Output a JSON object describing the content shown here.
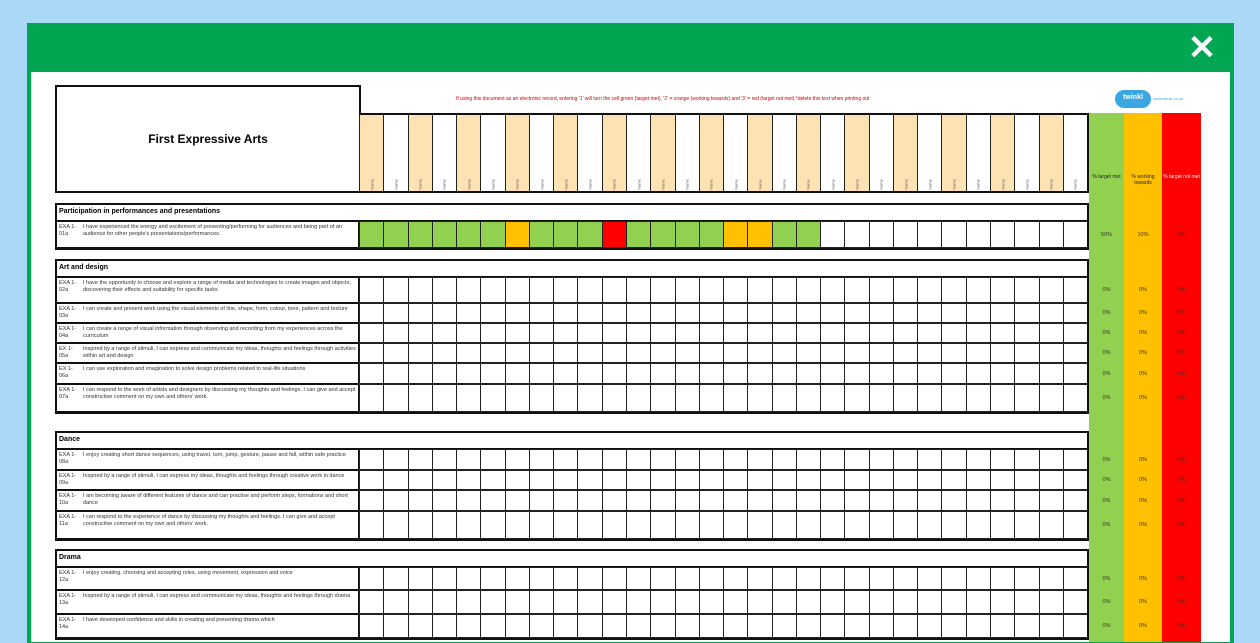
{
  "window": {
    "close_icon": "close-icon",
    "close_glyph": "✕"
  },
  "colors": {
    "frame": "#00a651",
    "target_met": "#92d050",
    "working_towards": "#ffc000",
    "not_met": "#ff0000",
    "name_col": "#fde3b4"
  },
  "sheet": {
    "title": "First Expressive Arts",
    "note": "If using this document as an electronic record, entering '1' will turn the cell green (target met), '2' = orange (working towards) and '3' = red (target not met) *delete this text when printing out",
    "logo_text": "twinkl",
    "logo_url": "www.twinkl.co.uk",
    "column_label": "Name",
    "column_count": 30,
    "percent_headers": [
      "% target met",
      "% working towards",
      "% target not met"
    ]
  },
  "sections": [
    {
      "title": "Participation in performances and presentations",
      "rows": [
        {
          "code": "EXA 1-01a",
          "text": "I have experienced the energy and excitement of presenting/performing for audiences and being part of an audience for other people's presentations/performances.",
          "marks": "GGGGGGOGGGRGGGGOOGG",
          "pct": [
            "50%",
            "10%",
            "3%"
          ]
        }
      ]
    },
    {
      "title": "Art and design",
      "rows": [
        {
          "code": "EXA 1-02a",
          "text": "I have the opportunity to choose and explore a range of media and technologies to create images and objects, discovering their effects and suitability for specific tasks",
          "marks": "",
          "pct": [
            "0%",
            "0%",
            "0%"
          ]
        },
        {
          "code": "EXA 1-03a",
          "text": "I can create and present work using the visual elements of line, shape, form, colour, tone, pattern and texture",
          "marks": "",
          "pct": [
            "0%",
            "0%",
            "0%"
          ]
        },
        {
          "code": "EXA 1-04a",
          "text": "I can create a range of visual information through observing and recording from my experiences across the curriculum",
          "marks": "",
          "pct": [
            "0%",
            "0%",
            "0%"
          ]
        },
        {
          "code": "EX 1-05a",
          "text": "Inspired by a range of stimuli, I can express and communicate my ideas, thoughts and feelings through activities within art and design",
          "marks": "",
          "pct": [
            "0%",
            "0%",
            "0%"
          ]
        },
        {
          "code": "EX 1-06a",
          "text": "I can use exploration and imagination to solve design problems related to real-life situations",
          "marks": "",
          "pct": [
            "0%",
            "0%",
            "0%"
          ]
        },
        {
          "code": "EXA 1-07a",
          "text": "I can respond to the work of artists and designers by discussing my thoughts and feelings. I can give and accept constructive comment on my own and others' work.",
          "marks": "",
          "pct": [
            "0%",
            "0%",
            "0%"
          ]
        }
      ]
    },
    {
      "title": "Dance",
      "rows": [
        {
          "code": "EXA 1-08a",
          "text": "I enjoy creating short dance sequences, using travel, turn, jump, gesture, pause and fall, within safe practice",
          "marks": "",
          "pct": [
            "0%",
            "0%",
            "0%"
          ]
        },
        {
          "code": "EXA 1-09a",
          "text": "Inspired by a range of stimuli, I can express my ideas, thoughts and feelings through creative work in dance",
          "marks": "",
          "pct": [
            "0%",
            "0%",
            "0%"
          ]
        },
        {
          "code": "EXA 1-10a",
          "text": "I am becoming aware of different features of dance and can practise and perform steps, formations and short dance",
          "marks": "",
          "pct": [
            "0%",
            "0%",
            "0%"
          ]
        },
        {
          "code": "EXA 1-11a",
          "text": "I can respond to the experience of dance by discussing my thoughts and feelings. I can give and accept constructive comment on my own and others' work.",
          "marks": "",
          "pct": [
            "0%",
            "0%",
            "0%"
          ]
        }
      ]
    },
    {
      "title": "Drama",
      "rows": [
        {
          "code": "EXA 1-12a",
          "text": "I enjoy creating, choosing and accepting roles, using movement, expression and voice",
          "marks": "",
          "pct": [
            "0%",
            "0%",
            "0%"
          ]
        },
        {
          "code": "EXA 1-13a",
          "text": "Inspired by a range of stimuli, I can express and communicate my ideas, thoughts and feelings through drama",
          "marks": "",
          "pct": [
            "0%",
            "0%",
            "0%"
          ]
        },
        {
          "code": "EXA 1-14a",
          "text": "I have developed confidence and skills in creating and presenting drama which",
          "marks": "",
          "pct": [
            "0%",
            "0%",
            "0%"
          ]
        }
      ]
    }
  ]
}
